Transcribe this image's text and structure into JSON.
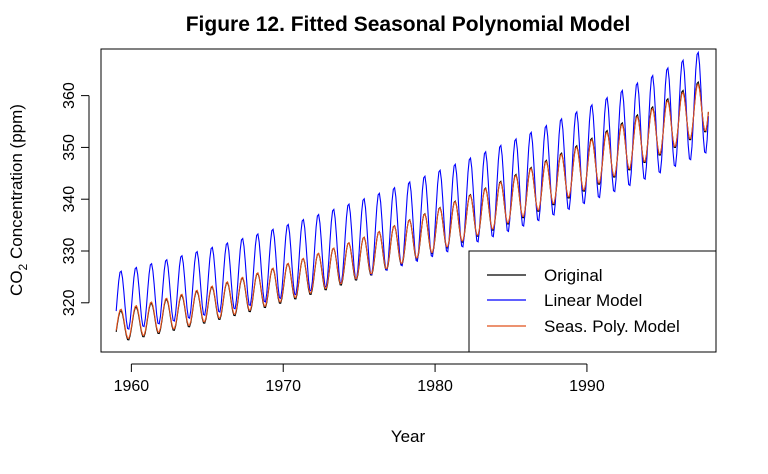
{
  "chart_data": {
    "type": "line",
    "title": "Figure 12. Fitted Seasonal Polynomial Model",
    "xlabel": "Year",
    "ylabel": "CO",
    "ylabel_subscript": "2",
    "ylabel_suffix": " Concentration (ppm)",
    "xlim": [
      1958,
      1998.5
    ],
    "ylim": [
      310.5,
      369
    ],
    "x_ticks": [
      1960,
      1970,
      1980,
      1990
    ],
    "y_ticks": [
      320,
      330,
      340,
      350,
      360
    ],
    "x_range": [
      1959,
      1998
    ],
    "grid": false,
    "legend_position": "bottom-right",
    "series": [
      {
        "name": "Original",
        "color": "#000000",
        "model": {
          "base": 315.3,
          "slope": 0.62,
          "curve": 0.0125,
          "amplitude": 3.0,
          "amp_growth": 0.02
        }
      },
      {
        "name": "Linear Model",
        "color": "#0000ff",
        "model": {
          "base": 320.2,
          "slope": 0.58,
          "curve": 0.0108,
          "amplitude": 5.8,
          "amp_growth": 0.02
        }
      },
      {
        "name": "Seas. Poly. Model",
        "color": "#e0501a",
        "model": {
          "base": 315.6,
          "slope": 0.61,
          "curve": 0.0125,
          "amplitude": 3.0,
          "amp_growth": 0.017
        }
      }
    ]
  }
}
